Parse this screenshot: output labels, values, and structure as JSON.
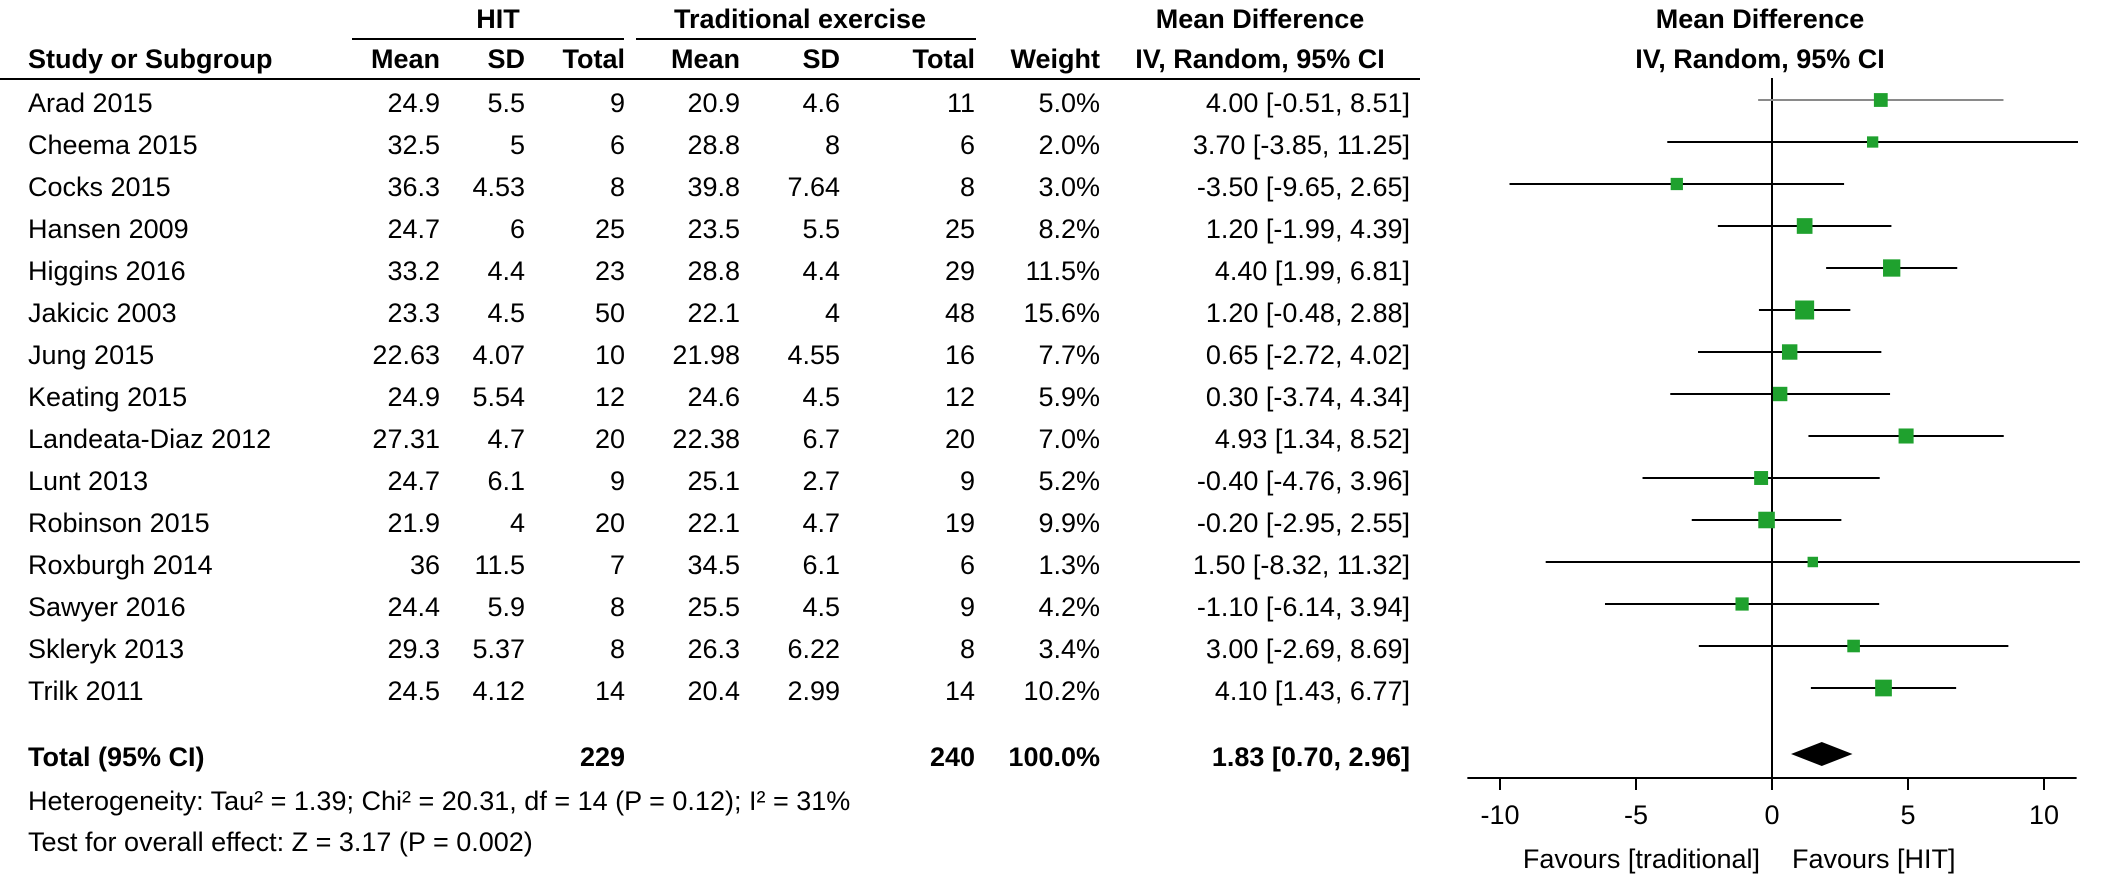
{
  "header": {
    "hit_group": "HIT",
    "trad_group": "Traditional exercise",
    "md_title": "Mean Difference",
    "plot_title": "Mean Difference",
    "study_col": "Study or Subgroup",
    "mean1": "Mean",
    "sd1": "SD",
    "total1": "Total",
    "mean2": "Mean",
    "sd2": "SD",
    "total2": "Total",
    "weight": "Weight",
    "md_method": "IV, Random, 95% CI",
    "plot_method": "IV, Random, 95% CI"
  },
  "studies": [
    {
      "name": "Arad 2015",
      "m1": "24.9",
      "sd1": "5.5",
      "n1": "9",
      "m2": "20.9",
      "sd2": "4.6",
      "n2": "11",
      "weight": "5.0%",
      "ci": "4.00 [-0.51, 8.51]"
    },
    {
      "name": "Cheema 2015",
      "m1": "32.5",
      "sd1": "5",
      "n1": "6",
      "m2": "28.8",
      "sd2": "8",
      "n2": "6",
      "weight": "2.0%",
      "ci": "3.70 [-3.85, 11.25]"
    },
    {
      "name": "Cocks 2015",
      "m1": "36.3",
      "sd1": "4.53",
      "n1": "8",
      "m2": "39.8",
      "sd2": "7.64",
      "n2": "8",
      "weight": "3.0%",
      "ci": "-3.50 [-9.65, 2.65]"
    },
    {
      "name": "Hansen 2009",
      "m1": "24.7",
      "sd1": "6",
      "n1": "25",
      "m2": "23.5",
      "sd2": "5.5",
      "n2": "25",
      "weight": "8.2%",
      "ci": "1.20 [-1.99, 4.39]"
    },
    {
      "name": "Higgins 2016",
      "m1": "33.2",
      "sd1": "4.4",
      "n1": "23",
      "m2": "28.8",
      "sd2": "4.4",
      "n2": "29",
      "weight": "11.5%",
      "ci": "4.40 [1.99, 6.81]"
    },
    {
      "name": "Jakicic 2003",
      "m1": "23.3",
      "sd1": "4.5",
      "n1": "50",
      "m2": "22.1",
      "sd2": "4",
      "n2": "48",
      "weight": "15.6%",
      "ci": "1.20 [-0.48, 2.88]"
    },
    {
      "name": "Jung 2015",
      "m1": "22.63",
      "sd1": "4.07",
      "n1": "10",
      "m2": "21.98",
      "sd2": "4.55",
      "n2": "16",
      "weight": "7.7%",
      "ci": "0.65 [-2.72, 4.02]"
    },
    {
      "name": "Keating 2015",
      "m1": "24.9",
      "sd1": "5.54",
      "n1": "12",
      "m2": "24.6",
      "sd2": "4.5",
      "n2": "12",
      "weight": "5.9%",
      "ci": "0.30 [-3.74, 4.34]"
    },
    {
      "name": "Landeata-Diaz 2012",
      "m1": "27.31",
      "sd1": "4.7",
      "n1": "20",
      "m2": "22.38",
      "sd2": "6.7",
      "n2": "20",
      "weight": "7.0%",
      "ci": "4.93 [1.34, 8.52]"
    },
    {
      "name": "Lunt 2013",
      "m1": "24.7",
      "sd1": "6.1",
      "n1": "9",
      "m2": "25.1",
      "sd2": "2.7",
      "n2": "9",
      "weight": "5.2%",
      "ci": "-0.40 [-4.76, 3.96]"
    },
    {
      "name": "Robinson 2015",
      "m1": "21.9",
      "sd1": "4",
      "n1": "20",
      "m2": "22.1",
      "sd2": "4.7",
      "n2": "19",
      "weight": "9.9%",
      "ci": "-0.20 [-2.95, 2.55]"
    },
    {
      "name": "Roxburgh 2014",
      "m1": "36",
      "sd1": "11.5",
      "n1": "7",
      "m2": "34.5",
      "sd2": "6.1",
      "n2": "6",
      "weight": "1.3%",
      "ci": "1.50 [-8.32, 11.32]"
    },
    {
      "name": "Sawyer 2016",
      "m1": "24.4",
      "sd1": "5.9",
      "n1": "8",
      "m2": "25.5",
      "sd2": "4.5",
      "n2": "9",
      "weight": "4.2%",
      "ci": "-1.10 [-6.14, 3.94]"
    },
    {
      "name": "Skleryk 2013",
      "m1": "29.3",
      "sd1": "5.37",
      "n1": "8",
      "m2": "26.3",
      "sd2": "6.22",
      "n2": "8",
      "weight": "3.4%",
      "ci": "3.00 [-2.69, 8.69]"
    },
    {
      "name": "Trilk 2011",
      "m1": "24.5",
      "sd1": "4.12",
      "n1": "14",
      "m2": "20.4",
      "sd2": "2.99",
      "n2": "14",
      "weight": "10.2%",
      "ci": "4.10 [1.43, 6.77]"
    }
  ],
  "total": {
    "name": "Total (95% CI)",
    "n1": "229",
    "n2": "240",
    "weight": "100.0%",
    "ci": "1.83 [0.70, 2.96]"
  },
  "heterogeneity": "Heterogeneity: Tau² = 1.39; Chi² = 20.31, df = 14 (P = 0.12); I² = 31%",
  "overall_effect": "Test for overall effect: Z = 3.17 (P = 0.002)",
  "axis": {
    "ticks": [
      "-10",
      "-5",
      "0",
      "5",
      "10"
    ],
    "favours_left": "Favours [traditional]",
    "favours_right": "Favours [HIT]"
  },
  "colors": {
    "square": "#1fa12e",
    "diamond": "#000000",
    "line": "#000000"
  },
  "chart_data": {
    "type": "forest",
    "title": "Mean Difference",
    "subtitle": "IV, Random, 95% CI",
    "xlim": [
      -10,
      10
    ],
    "xticks": [
      -10,
      -5,
      0,
      5,
      10
    ],
    "xlabel_left": "Favours [traditional]",
    "xlabel_right": "Favours [HIT]",
    "studies": [
      {
        "name": "Arad 2015",
        "md": 4.0,
        "lo": -0.51,
        "hi": 8.51,
        "weight": 5.0
      },
      {
        "name": "Cheema 2015",
        "md": 3.7,
        "lo": -3.85,
        "hi": 11.25,
        "weight": 2.0
      },
      {
        "name": "Cocks 2015",
        "md": -3.5,
        "lo": -9.65,
        "hi": 2.65,
        "weight": 3.0
      },
      {
        "name": "Hansen 2009",
        "md": 1.2,
        "lo": -1.99,
        "hi": 4.39,
        "weight": 8.2
      },
      {
        "name": "Higgins 2016",
        "md": 4.4,
        "lo": 1.99,
        "hi": 6.81,
        "weight": 11.5
      },
      {
        "name": "Jakicic 2003",
        "md": 1.2,
        "lo": -0.48,
        "hi": 2.88,
        "weight": 15.6
      },
      {
        "name": "Jung 2015",
        "md": 0.65,
        "lo": -2.72,
        "hi": 4.02,
        "weight": 7.7
      },
      {
        "name": "Keating 2015",
        "md": 0.3,
        "lo": -3.74,
        "hi": 4.34,
        "weight": 5.9
      },
      {
        "name": "Landeata-Diaz 2012",
        "md": 4.93,
        "lo": 1.34,
        "hi": 8.52,
        "weight": 7.0
      },
      {
        "name": "Lunt 2013",
        "md": -0.4,
        "lo": -4.76,
        "hi": 3.96,
        "weight": 5.2
      },
      {
        "name": "Robinson 2015",
        "md": -0.2,
        "lo": -2.95,
        "hi": 2.55,
        "weight": 9.9
      },
      {
        "name": "Roxburgh 2014",
        "md": 1.5,
        "lo": -8.32,
        "hi": 11.32,
        "weight": 1.3
      },
      {
        "name": "Sawyer 2016",
        "md": -1.1,
        "lo": -6.14,
        "hi": 3.94,
        "weight": 4.2
      },
      {
        "name": "Skleryk 2013",
        "md": 3.0,
        "lo": -2.69,
        "hi": 8.69,
        "weight": 3.4
      },
      {
        "name": "Trilk 2011",
        "md": 4.1,
        "lo": 1.43,
        "hi": 6.77,
        "weight": 10.2
      }
    ],
    "pooled": {
      "name": "Total (95% CI)",
      "md": 1.83,
      "lo": 0.7,
      "hi": 2.96,
      "weight": 100.0
    }
  }
}
